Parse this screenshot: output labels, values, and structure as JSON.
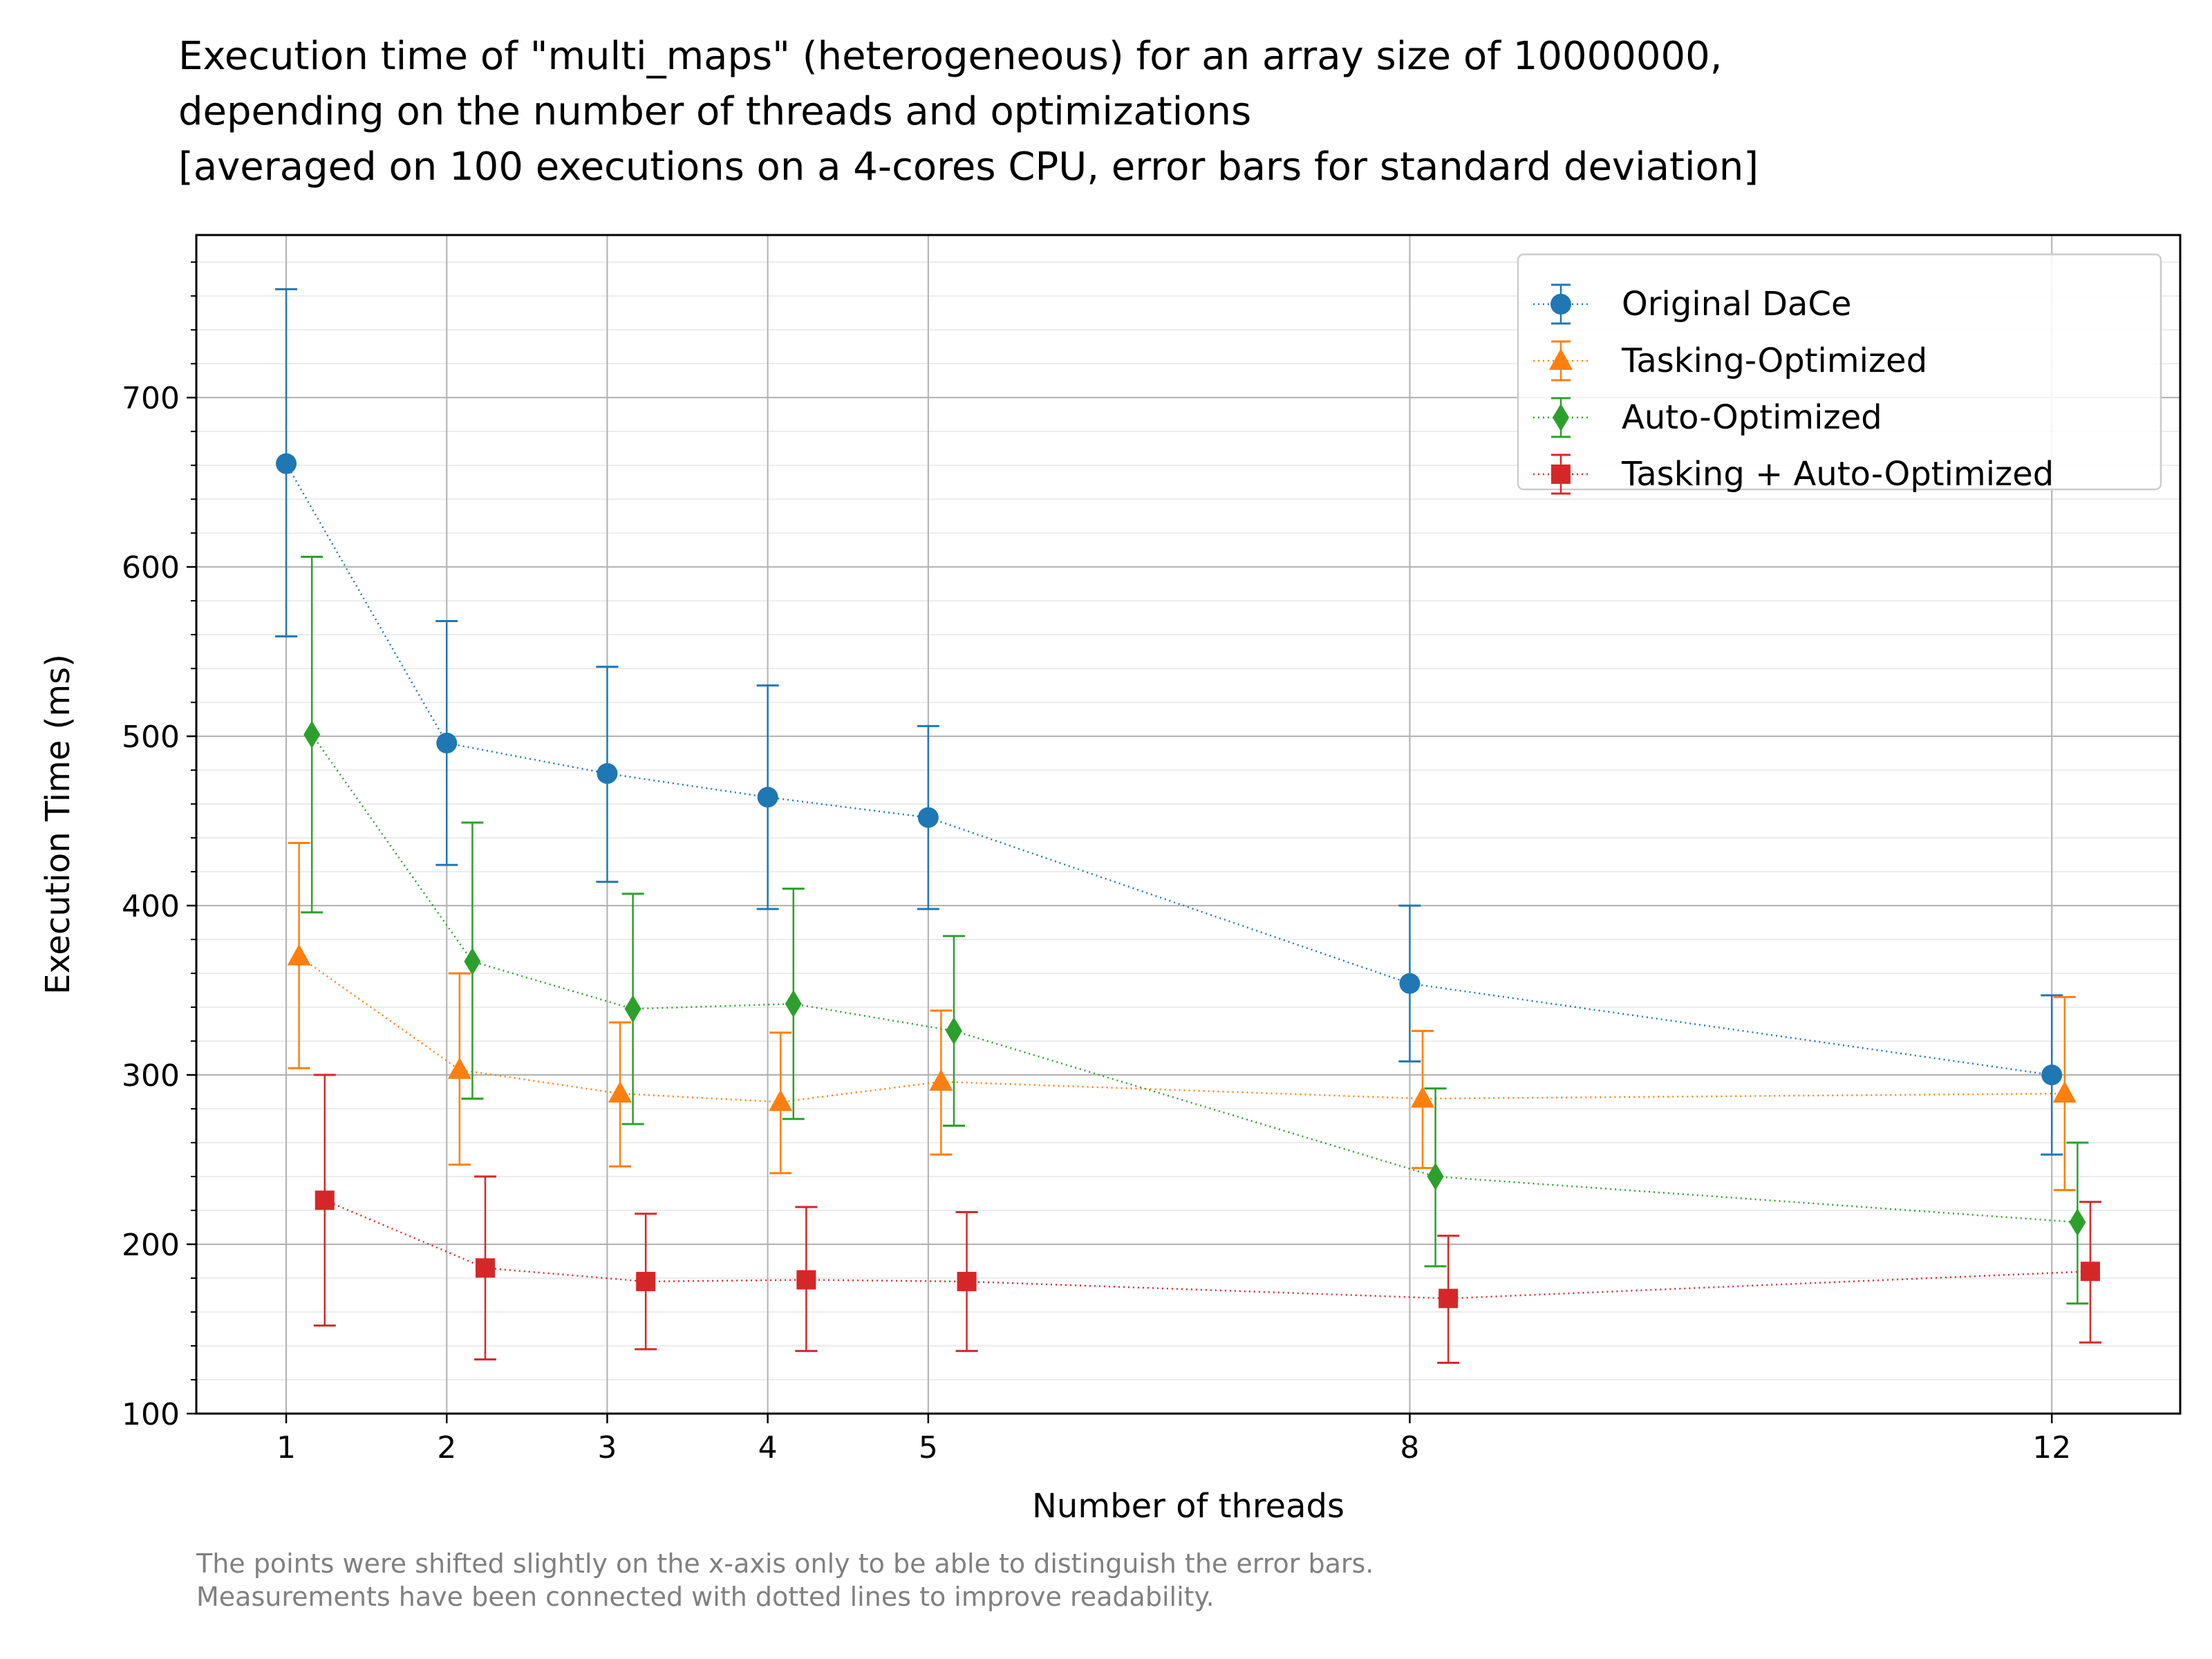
{
  "chart_data": {
    "type": "line",
    "title_lines": [
      "Execution time of \"multi_maps\" (heterogeneous) for an array size of 10000000,",
      "depending on the number of threads and optimizations",
      "[averaged on 100 executions on a 4-cores CPU, error bars for standard deviation]"
    ],
    "xlabel": "Number of threads",
    "ylabel": "Execution Time (ms)",
    "x_ticks": [
      1,
      2,
      3,
      4,
      5,
      8,
      12
    ],
    "y_ticks": [
      100,
      200,
      300,
      400,
      500,
      600,
      700
    ],
    "xlim": [
      0.44,
      12.8
    ],
    "ylim": [
      100,
      796
    ],
    "grid": true,
    "legend_position": "top-right",
    "error_bars": "standard deviation",
    "series": [
      {
        "name": "Original DaCe",
        "color": "#1f77b4",
        "marker": "circle",
        "x_offset": 0,
        "points": [
          {
            "x": 1,
            "y": 661,
            "err_low": 559,
            "err_high": 764
          },
          {
            "x": 2,
            "y": 496,
            "err_low": 424,
            "err_high": 568
          },
          {
            "x": 3,
            "y": 478,
            "err_low": 414,
            "err_high": 541
          },
          {
            "x": 4,
            "y": 464,
            "err_low": 398,
            "err_high": 530
          },
          {
            "x": 5,
            "y": 452,
            "err_low": 398,
            "err_high": 506
          },
          {
            "x": 8,
            "y": 354,
            "err_low": 308,
            "err_high": 400
          },
          {
            "x": 12,
            "y": 300,
            "err_low": 253,
            "err_high": 347
          }
        ]
      },
      {
        "name": "Tasking-Optimized",
        "color": "#ff7f0e",
        "marker": "triangle",
        "x_offset": 0.08,
        "points": [
          {
            "x": 1,
            "y": 370,
            "err_low": 304,
            "err_high": 437
          },
          {
            "x": 2,
            "y": 303,
            "err_low": 247,
            "err_high": 360
          },
          {
            "x": 3,
            "y": 289,
            "err_low": 246,
            "err_high": 331
          },
          {
            "x": 4,
            "y": 284,
            "err_low": 242,
            "err_high": 325
          },
          {
            "x": 5,
            "y": 296,
            "err_low": 253,
            "err_high": 338
          },
          {
            "x": 8,
            "y": 286,
            "err_low": 245,
            "err_high": 326
          },
          {
            "x": 12,
            "y": 289,
            "err_low": 232,
            "err_high": 346
          }
        ]
      },
      {
        "name": "Auto-Optimized",
        "color": "#2ca02c",
        "marker": "diamond",
        "x_offset": 0.16,
        "points": [
          {
            "x": 1,
            "y": 501,
            "err_low": 396,
            "err_high": 606
          },
          {
            "x": 2,
            "y": 367,
            "err_low": 286,
            "err_high": 449
          },
          {
            "x": 3,
            "y": 339,
            "err_low": 271,
            "err_high": 407
          },
          {
            "x": 4,
            "y": 342,
            "err_low": 274,
            "err_high": 410
          },
          {
            "x": 5,
            "y": 326,
            "err_low": 270,
            "err_high": 382
          },
          {
            "x": 8,
            "y": 240,
            "err_low": 187,
            "err_high": 292
          },
          {
            "x": 12,
            "y": 213,
            "err_low": 165,
            "err_high": 260
          }
        ]
      },
      {
        "name": "Tasking + Auto-Optimized",
        "color": "#d62728",
        "marker": "square",
        "x_offset": 0.24,
        "points": [
          {
            "x": 1,
            "y": 226,
            "err_low": 152,
            "err_high": 300
          },
          {
            "x": 2,
            "y": 186,
            "err_low": 132,
            "err_high": 240
          },
          {
            "x": 3,
            "y": 178,
            "err_low": 138,
            "err_high": 218
          },
          {
            "x": 4,
            "y": 179,
            "err_low": 137,
            "err_high": 222
          },
          {
            "x": 5,
            "y": 178,
            "err_low": 137,
            "err_high": 219
          },
          {
            "x": 8,
            "y": 168,
            "err_low": 130,
            "err_high": 205
          },
          {
            "x": 12,
            "y": 184,
            "err_low": 142,
            "err_high": 225
          }
        ]
      }
    ],
    "footnote_lines": [
      "The points were shifted slightly on the x-axis only to be able to distinguish the error bars.",
      "Measurements have been connected with dotted lines to improve readability."
    ]
  }
}
